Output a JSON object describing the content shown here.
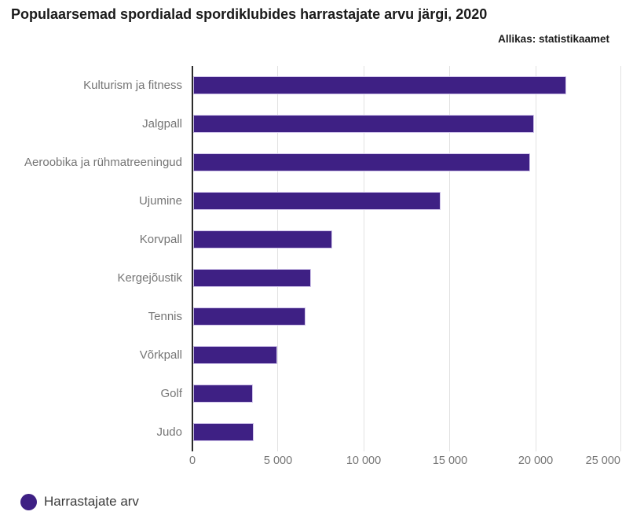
{
  "header": {
    "title": "Populaarsemad spordialad spordiklubides harrastajate arvu järgi, 2020",
    "source": "Allikas: statistikaamet"
  },
  "chart_data": {
    "type": "bar",
    "orientation": "horizontal",
    "title": "Populaarsemad spordialad spordiklubides harrastajate arvu järgi, 2020",
    "source": "Allikas: statistikaamet",
    "categories": [
      "Kulturism ja fitness",
      "Jalgpall",
      "Aeroobika ja rühmatreeningud",
      "Ujumine",
      "Korvpall",
      "Kergejõustik",
      "Tennis",
      "Võrkpall",
      "Golf",
      "Judo"
    ],
    "values": [
      21700,
      19800,
      19600,
      14400,
      8100,
      6860,
      6520,
      4890,
      3470,
      3520
    ],
    "series_name": "Harrastajate arv",
    "xlabel": "",
    "ylabel": "",
    "xlim": [
      0,
      25000
    ],
    "xticks": [
      "0",
      "5 000",
      "10 000",
      "15 000",
      "20 000",
      "25 000"
    ],
    "xtick_values": [
      0,
      5000,
      10000,
      15000,
      20000,
      25000
    ],
    "grid": true,
    "legend_position": "bottom-left",
    "bar_color": "#3e2084"
  },
  "legend": {
    "marker_color": "#3e2084",
    "label": "Harrastajate arv"
  }
}
